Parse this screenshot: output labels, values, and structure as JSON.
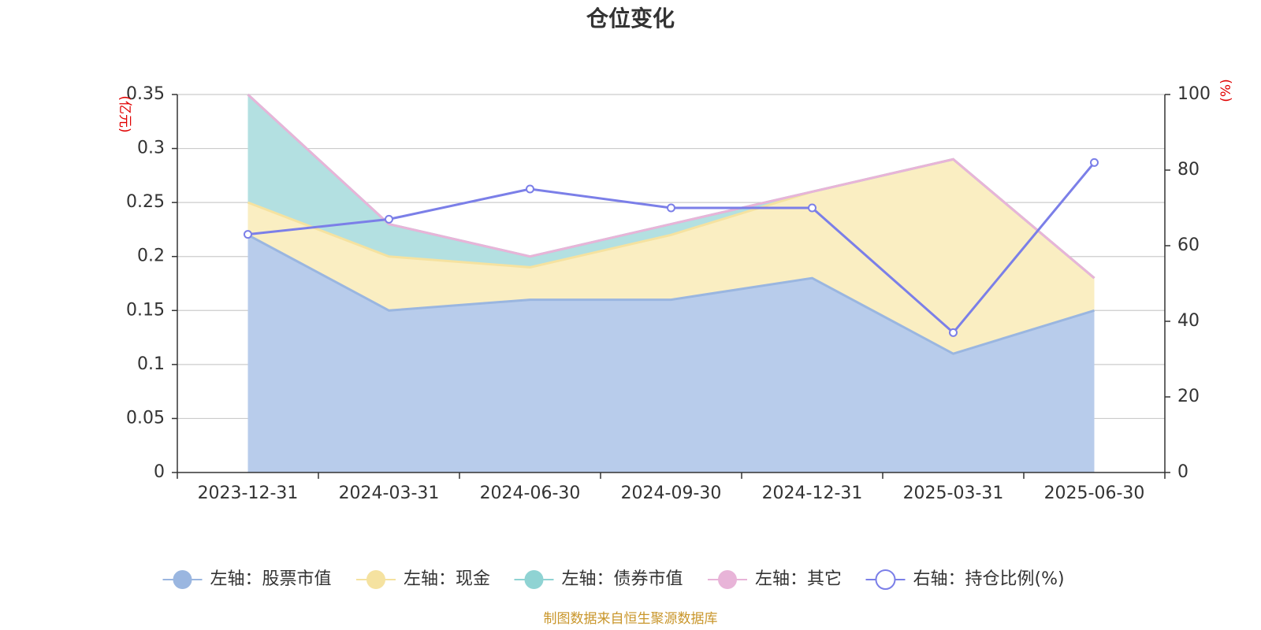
{
  "chart_data": {
    "type": "area",
    "title": "仓位变化",
    "x": [
      "2023-12-31",
      "2024-03-31",
      "2024-06-30",
      "2024-09-30",
      "2024-12-31",
      "2025-03-31",
      "2025-06-30"
    ],
    "left_axis": {
      "unit": "(亿元)",
      "ylim": [
        0,
        0.35
      ],
      "ticks": [
        "0",
        "0.05",
        "0.1",
        "0.15",
        "0.2",
        "0.25",
        "0.3",
        "0.35"
      ]
    },
    "right_axis": {
      "unit": "(%)",
      "ylim": [
        0,
        100
      ],
      "ticks": [
        "0",
        "20",
        "40",
        "60",
        "80",
        "100"
      ]
    },
    "stacked_series": [
      {
        "name": "左轴：股票市值",
        "color": "#9ab6e0",
        "fill": "#b8cceb",
        "values": [
          0.22,
          0.15,
          0.16,
          0.16,
          0.18,
          0.11,
          0.15
        ]
      },
      {
        "name": "左轴：现金",
        "color": "#f5e2a0",
        "fill": "#faeec2",
        "values": [
          0.03,
          0.05,
          0.03,
          0.06,
          0.08,
          0.18,
          0.03
        ]
      },
      {
        "name": "左轴：债券市值",
        "color": "#8fd3d3",
        "fill": "#b3e0e1",
        "values": [
          0.1,
          0.03,
          0.01,
          0.01,
          0.0,
          0.0,
          0.0
        ]
      },
      {
        "name": "左轴：其它",
        "color": "#e8b4d8",
        "fill": "#efcde6",
        "values": [
          0.0,
          0.0,
          0.0,
          0.0,
          0.0,
          0.0,
          0.0
        ]
      }
    ],
    "line_series": {
      "name": "右轴：持仓比例(%)",
      "color": "#7b7fe8",
      "values": [
        63,
        67,
        75,
        70,
        70,
        37,
        82
      ]
    },
    "grid": true,
    "legend_position": "bottom"
  },
  "source_note": "制图数据来自恒生聚源数据库"
}
